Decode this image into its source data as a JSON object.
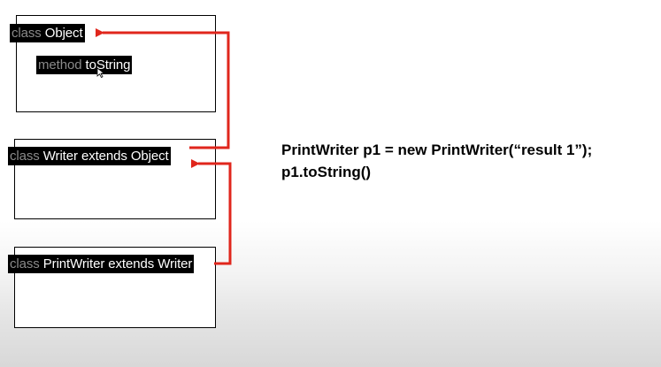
{
  "diagram": {
    "boxes": [
      {
        "keyword": "class",
        "title": "Object"
      },
      {
        "keyword": "class",
        "title": "Writer extends Object"
      },
      {
        "keyword": "class",
        "title": "PrintWriter extends Writer"
      }
    ],
    "method": {
      "keyword": "method",
      "name": "toString"
    }
  },
  "code": {
    "line1": "PrintWriter p1 = new PrintWriter(“result 1”);",
    "line2": "p1.toString()"
  },
  "colors": {
    "arrow": "#e0261c",
    "label_bg": "#000000",
    "keyword": "#8a8a8a"
  },
  "icons": {
    "cursor": "mouse-pointer-icon"
  }
}
